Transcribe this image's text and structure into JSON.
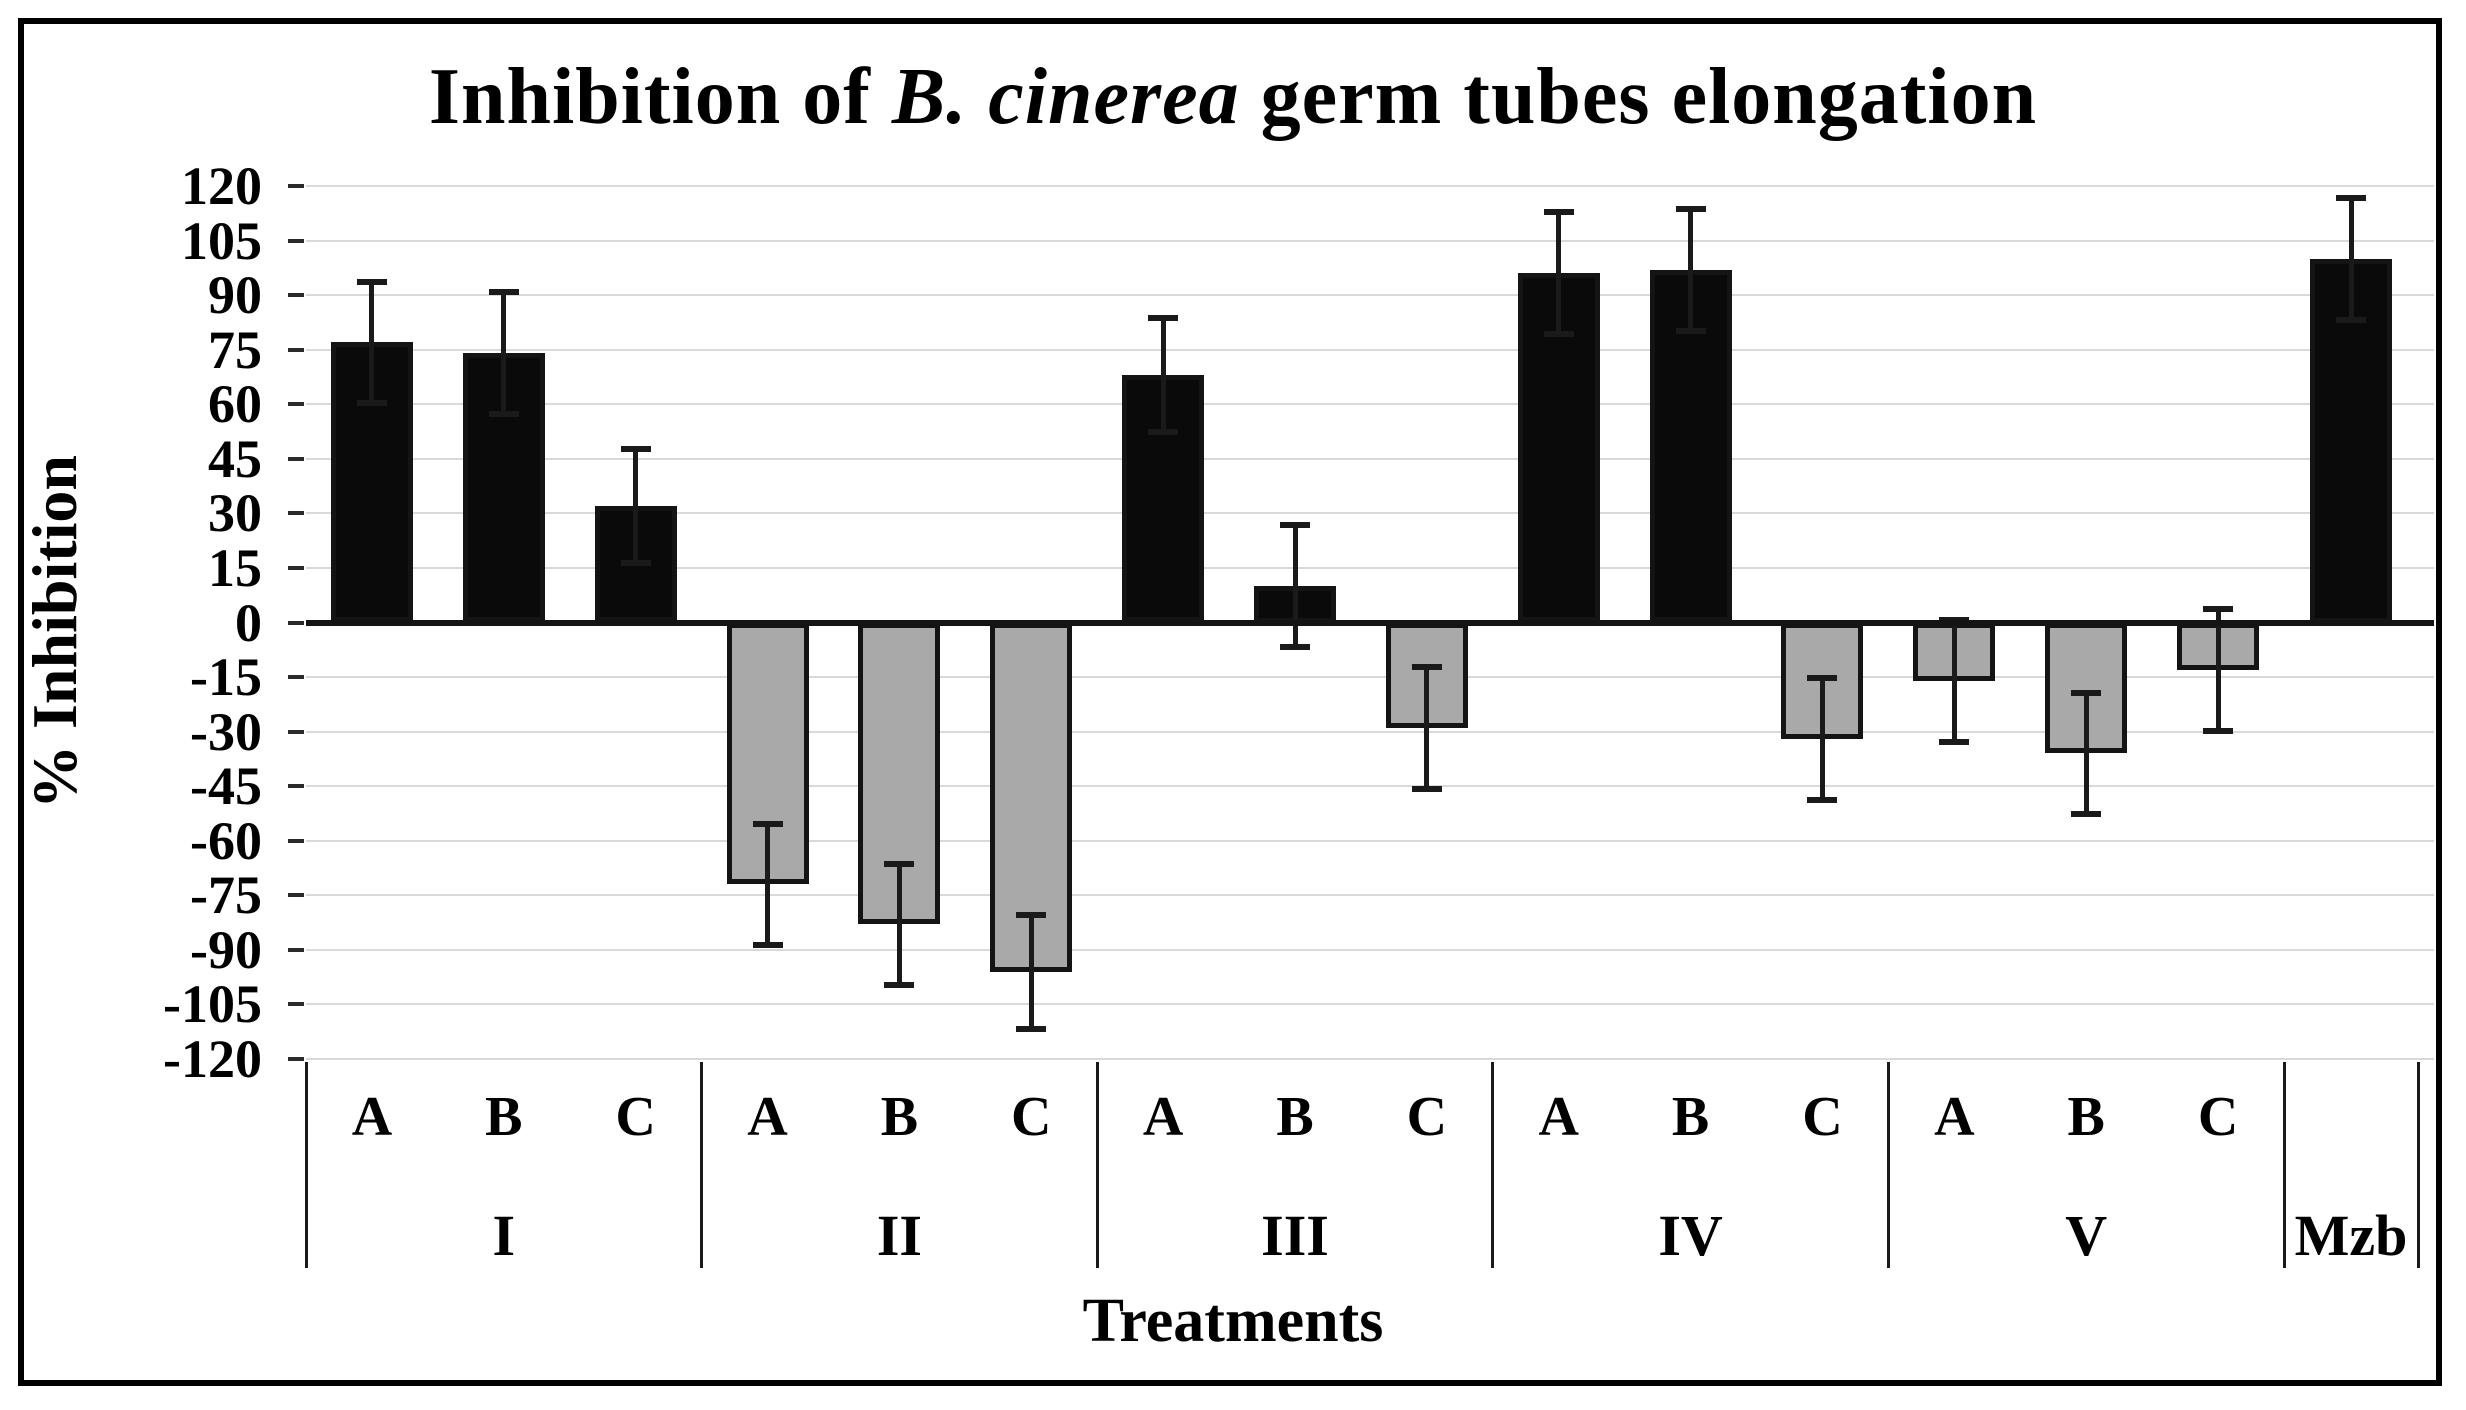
{
  "title": {
    "full": "Inhibition of B. cinerea germ tubes elongation",
    "prefix": "Inhibition of ",
    "italic_species": "B. cinerea",
    "suffix": " germ tubes elongation"
  },
  "y_axis": {
    "label": "% Inhibition",
    "ticks": [
      120,
      105,
      90,
      75,
      60,
      45,
      30,
      15,
      0,
      -15,
      -30,
      -45,
      -60,
      -75,
      -90,
      -105,
      -120
    ]
  },
  "x_axis": {
    "label": "Treatments"
  },
  "chart_data": {
    "type": "bar",
    "title": "Inhibition of B. cinerea germ tubes elongation",
    "xlabel": "Treatments",
    "ylabel": "% Inhibition",
    "ylim": [
      -120,
      120
    ],
    "ytick_step": 15,
    "grid": true,
    "legend": "none",
    "groups": [
      {
        "label": "I",
        "bars": [
          {
            "label": "A",
            "value": 77,
            "error": 17
          },
          {
            "label": "B",
            "value": 74,
            "error": 17
          },
          {
            "label": "C",
            "value": 32,
            "error": 16
          }
        ]
      },
      {
        "label": "II",
        "bars": [
          {
            "label": "A",
            "value": -72,
            "error": 17
          },
          {
            "label": "B",
            "value": -83,
            "error": 17
          },
          {
            "label": "C",
            "value": -96,
            "error": 16
          }
        ]
      },
      {
        "label": "III",
        "bars": [
          {
            "label": "A",
            "value": 68,
            "error": 16
          },
          {
            "label": "B",
            "value": 10,
            "error": 17
          },
          {
            "label": "C",
            "value": -29,
            "error": 17
          }
        ]
      },
      {
        "label": "IV",
        "bars": [
          {
            "label": "A",
            "value": 96,
            "error": 17
          },
          {
            "label": "B",
            "value": 97,
            "error": 17
          },
          {
            "label": "C",
            "value": -32,
            "error": 17
          }
        ]
      },
      {
        "label": "V",
        "bars": [
          {
            "label": "A",
            "value": -16,
            "error": 17
          },
          {
            "label": "B",
            "value": -36,
            "error": 17
          },
          {
            "label": "C",
            "value": -13,
            "error": 17
          }
        ]
      },
      {
        "label": "Mzb",
        "bars": [
          {
            "label": "",
            "value": 100,
            "error": 17
          }
        ]
      }
    ],
    "colors": {
      "positive_bar": "#0a0a0a",
      "negative_bar": "#a9a9a9",
      "bar_border": "#141414",
      "gridline": "#d9d9d9",
      "zero_line": "#141414",
      "error_bar": "#1a1a1a",
      "text": "#000000",
      "background": "#ffffff"
    }
  }
}
